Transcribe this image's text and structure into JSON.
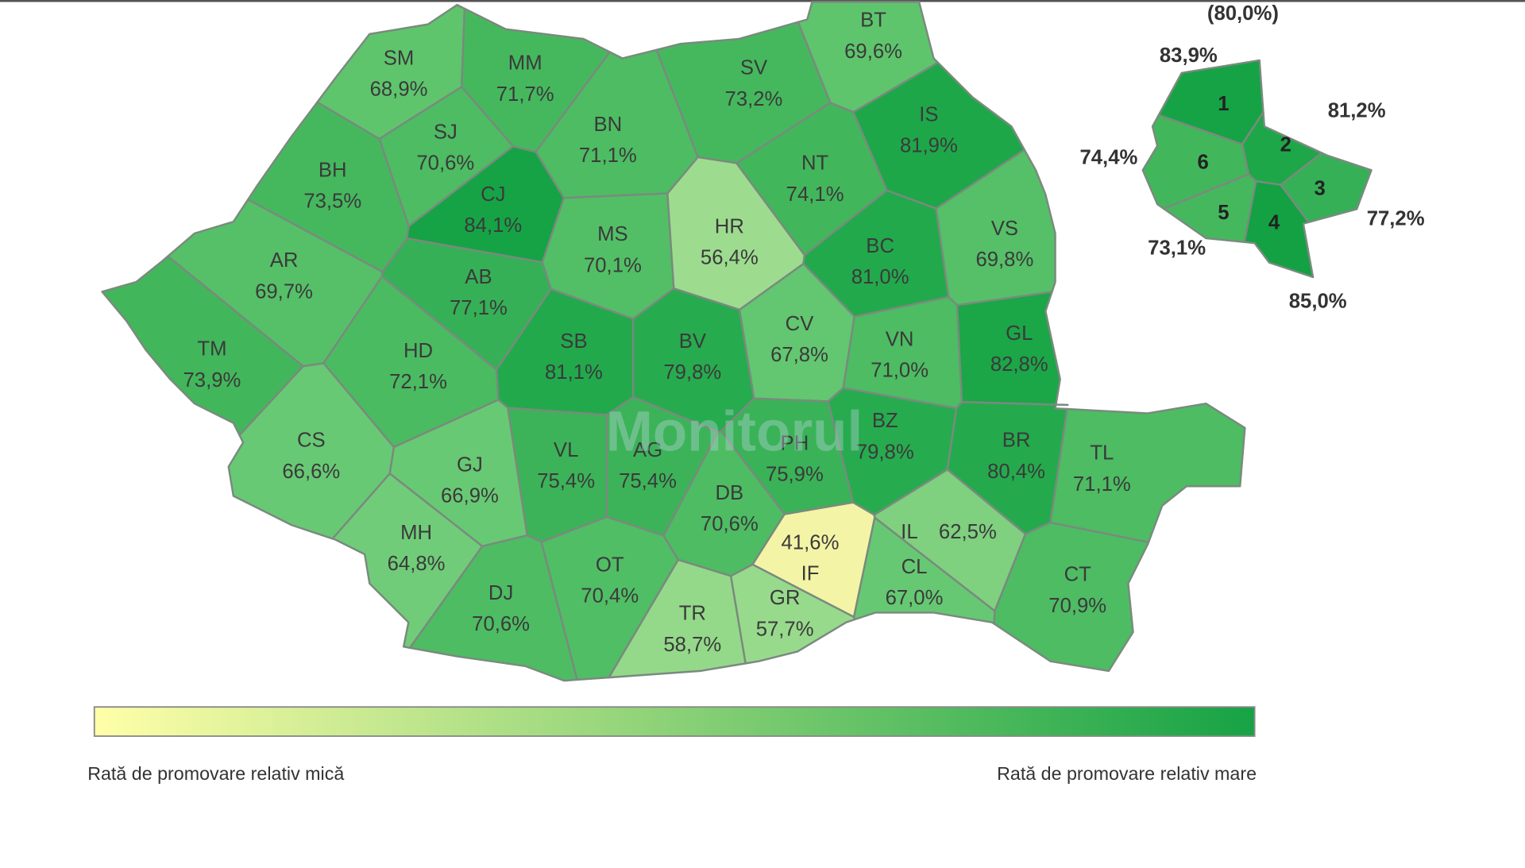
{
  "map": {
    "regions": [
      {
        "code": "SM",
        "label": "68,9%",
        "color": "#5ec56d"
      },
      {
        "code": "MM",
        "label": "71,7%",
        "color": "#45b85e"
      },
      {
        "code": "BT",
        "label": "69,6%",
        "color": "#5ec56d"
      },
      {
        "code": "SV",
        "label": "73,2%",
        "color": "#45b85e"
      },
      {
        "code": "SJ",
        "label": "70,6%",
        "color": "#4dbc63"
      },
      {
        "code": "BN",
        "label": "71,1%",
        "color": "#4dbc63"
      },
      {
        "code": "IS",
        "label": "81,9%",
        "color": "#1ea749"
      },
      {
        "code": "BH",
        "label": "73,5%",
        "color": "#45b85e"
      },
      {
        "code": "CJ",
        "label": "84,1%",
        "color": "#16a345"
      },
      {
        "code": "NT",
        "label": "74,1%",
        "color": "#42b65b"
      },
      {
        "code": "VS",
        "label": "69,8%",
        "color": "#55c068"
      },
      {
        "code": "AR",
        "label": "69,7%",
        "color": "#55c068"
      },
      {
        "code": "MS",
        "label": "70,1%",
        "color": "#52bf66"
      },
      {
        "code": "HR",
        "label": "56,4%",
        "color": "#9ddc8f"
      },
      {
        "code": "BC",
        "label": "81,0%",
        "color": "#22a94c"
      },
      {
        "code": "AB",
        "label": "77,1%",
        "color": "#35b056"
      },
      {
        "code": "TM",
        "label": "73,9%",
        "color": "#42b65b"
      },
      {
        "code": "HD",
        "label": "72,1%",
        "color": "#4abb61"
      },
      {
        "code": "SB",
        "label": "81,1%",
        "color": "#22a94c"
      },
      {
        "code": "BV",
        "label": "79,8%",
        "color": "#27ab4f"
      },
      {
        "code": "CV",
        "label": "67,8%",
        "color": "#62c770"
      },
      {
        "code": "VN",
        "label": "71,0%",
        "color": "#4dbc63"
      },
      {
        "code": "GL",
        "label": "82,8%",
        "color": "#1ba647"
      },
      {
        "code": "CS",
        "label": "66,6%",
        "color": "#68c974"
      },
      {
        "code": "GJ",
        "label": "66,9%",
        "color": "#68c974"
      },
      {
        "code": "VL",
        "label": "75,4%",
        "color": "#3cb359"
      },
      {
        "code": "AG",
        "label": "75,4%",
        "color": "#3cb359"
      },
      {
        "code": "PH",
        "label": "75,9%",
        "color": "#3ab258"
      },
      {
        "code": "BZ",
        "label": "79,8%",
        "color": "#27ab4f"
      },
      {
        "code": "BR",
        "label": "80,4%",
        "color": "#24aa4d"
      },
      {
        "code": "TL",
        "label": "71,1%",
        "color": "#4dbc63"
      },
      {
        "code": "MH",
        "label": "64,8%",
        "color": "#70cc78"
      },
      {
        "code": "DJ",
        "label": "70,6%",
        "color": "#4dbc63"
      },
      {
        "code": "OT",
        "label": "70,4%",
        "color": "#50be65"
      },
      {
        "code": "DB",
        "label": "70,6%",
        "color": "#4dbc63"
      },
      {
        "code": "IF",
        "label": "41,6%",
        "color": "#f4f4a6"
      },
      {
        "code": "IL",
        "label": "62,5%",
        "color": "#7fd07f"
      },
      {
        "code": "CL",
        "label": "67,0%",
        "color": "#66c873"
      },
      {
        "code": "TR",
        "label": "58,7%",
        "color": "#94d98a"
      },
      {
        "code": "GR",
        "label": "57,7%",
        "color": "#98da8c"
      },
      {
        "code": "CT",
        "label": "70,9%",
        "color": "#4dbc63"
      }
    ],
    "bucharest": {
      "total_label": "(80,0%)",
      "sectors": [
        {
          "number": "1",
          "label": "83,9%",
          "color": "#16a345"
        },
        {
          "number": "2",
          "label": "81,2%",
          "color": "#1ea749"
        },
        {
          "number": "3",
          "label": "77,2%",
          "color": "#35b056"
        },
        {
          "number": "4",
          "label": "85,0%",
          "color": "#13a143"
        },
        {
          "number": "5",
          "label": "73,1%",
          "color": "#45b85e"
        },
        {
          "number": "6",
          "label": "74,4%",
          "color": "#42b65b"
        }
      ]
    },
    "legend": {
      "low": "Rată de promovare relativ mică",
      "high": "Rată de promovare relativ mare",
      "colors": [
        "#ffffa8",
        "#16a345"
      ]
    },
    "watermark": "Monitorul"
  }
}
